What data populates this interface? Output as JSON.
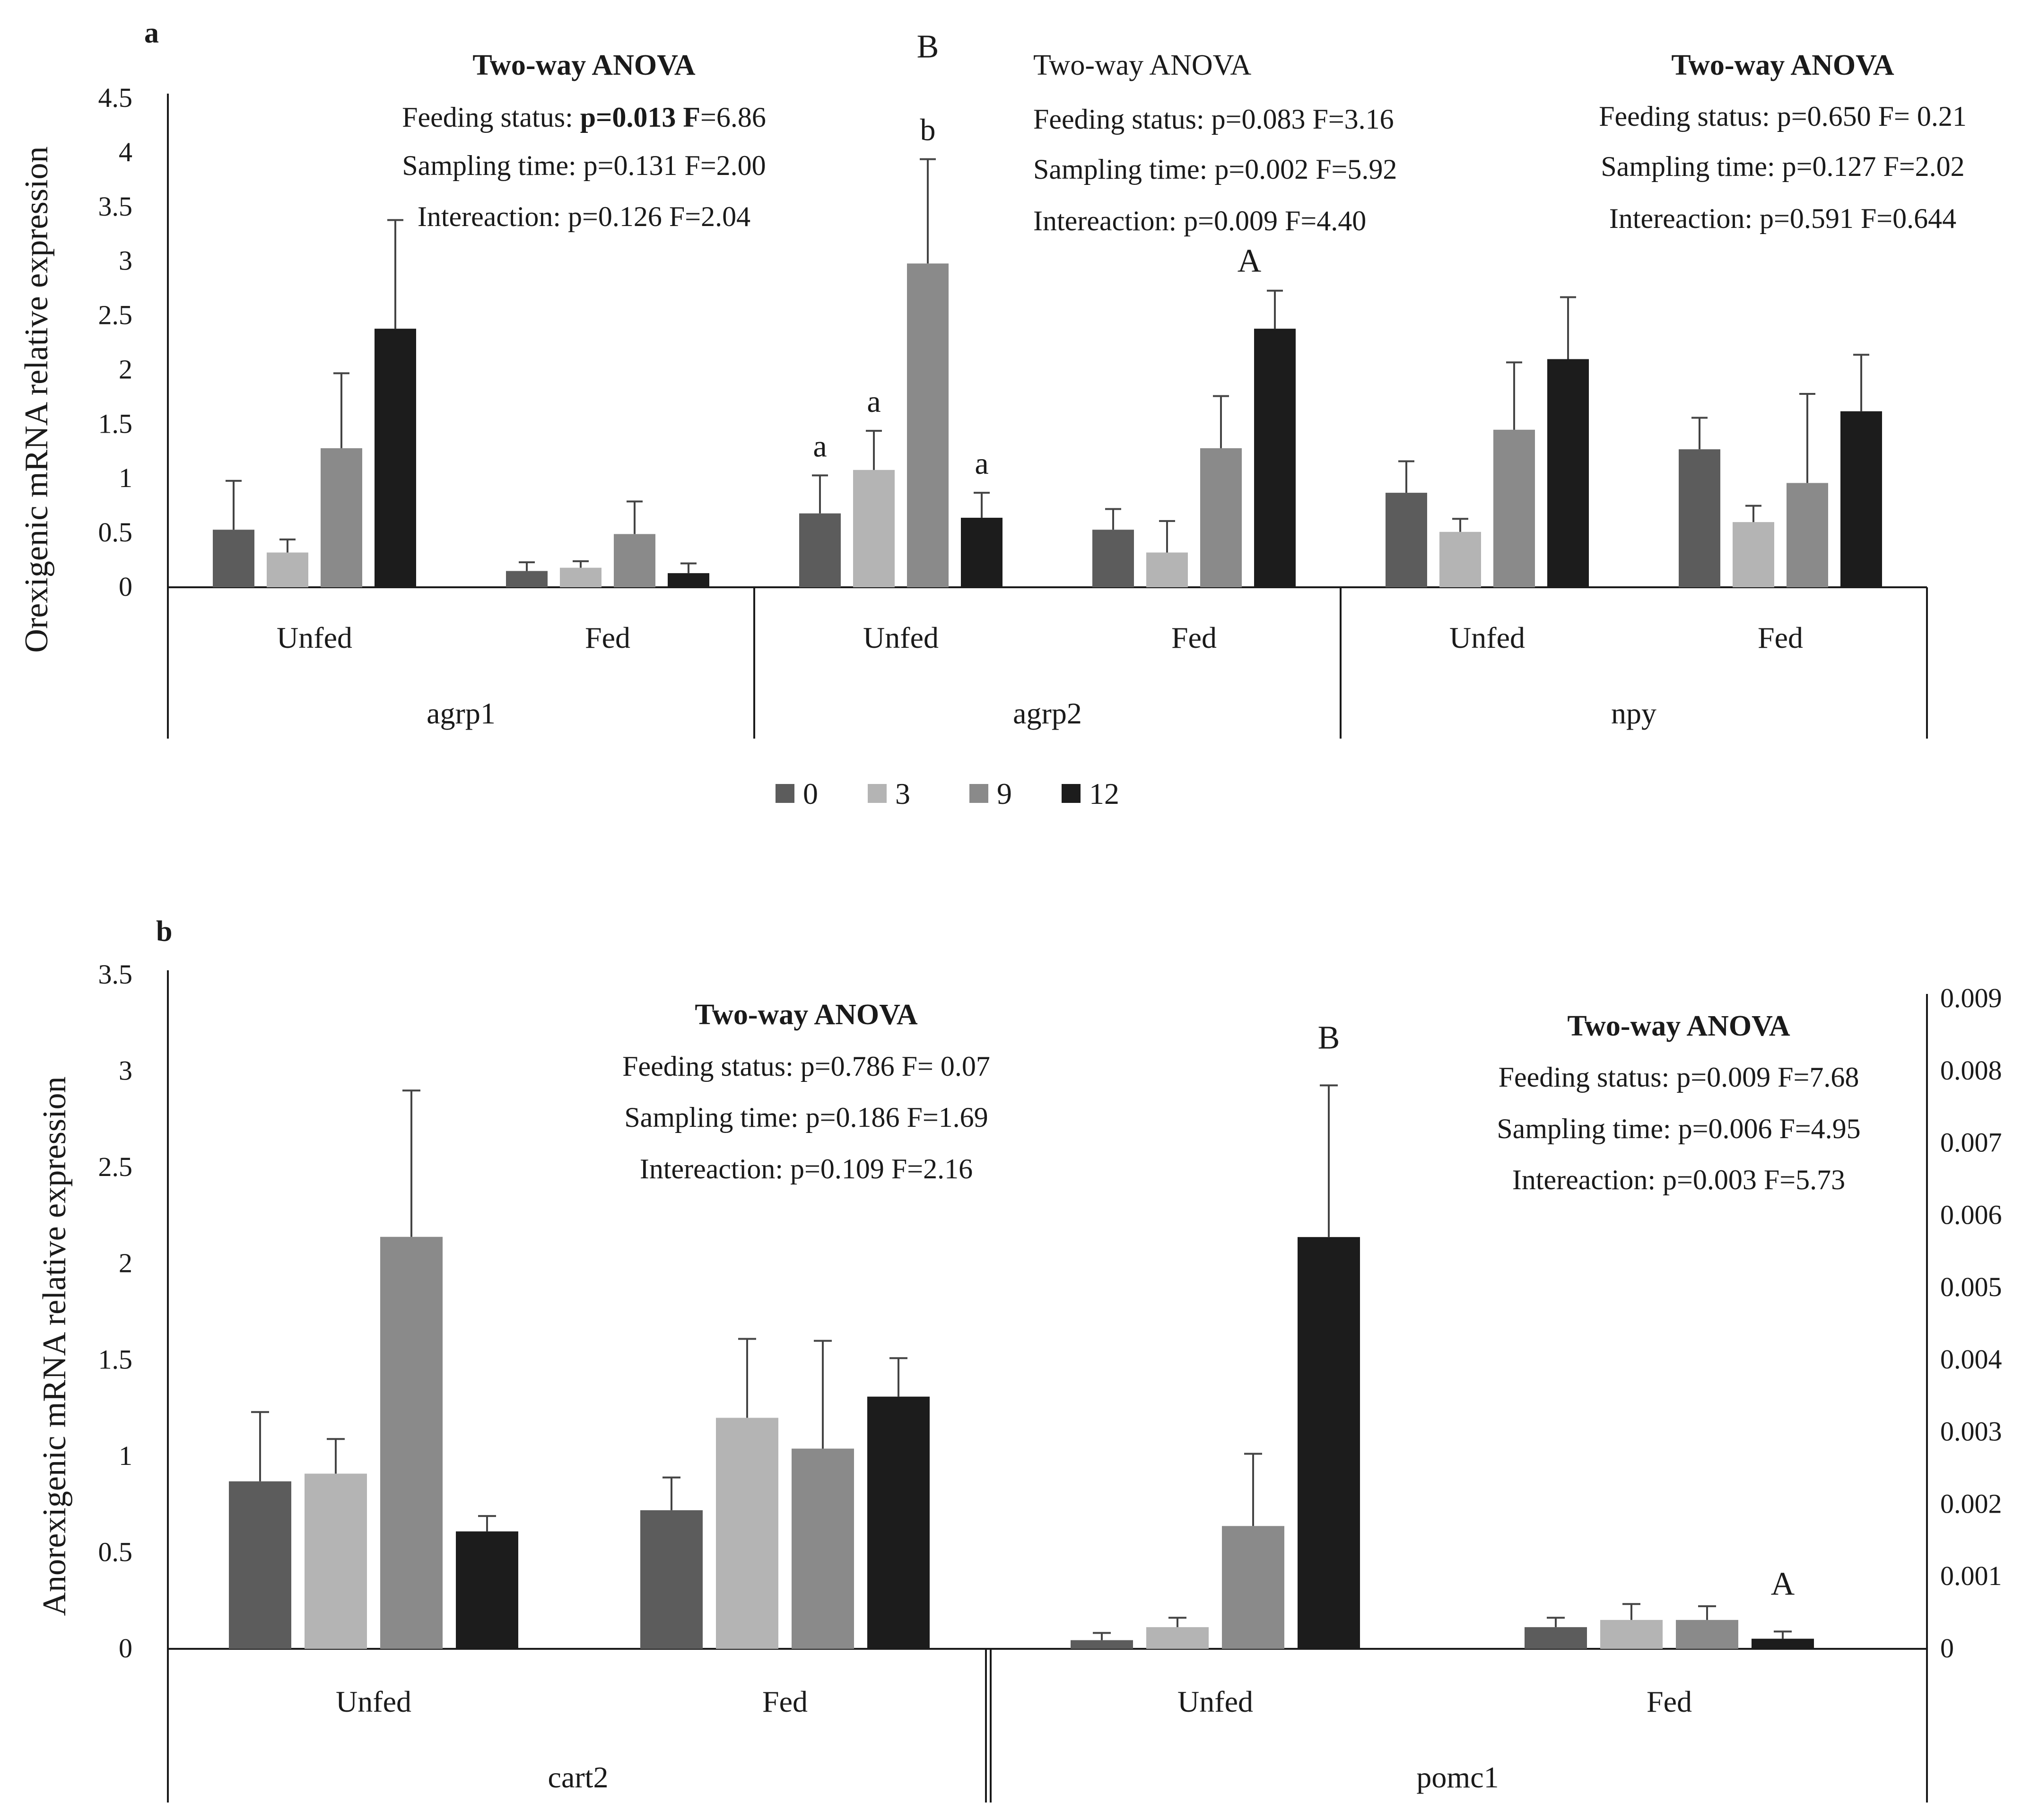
{
  "figure": {
    "panel_labels": [
      "a",
      "b"
    ],
    "legend": [
      {
        "label": "0",
        "color": "#5c5c5c"
      },
      {
        "label": "3",
        "color": "#b4b4b4"
      },
      {
        "label": "9",
        "color": "#8a8a8a"
      },
      {
        "label": "12",
        "color": "#1c1c1c"
      }
    ]
  },
  "chart_data": [
    {
      "type": "bar",
      "panel": "a",
      "ylabel": "Orexigenic mRNA relative expression",
      "ylim": [
        0,
        4.5
      ],
      "yticks": [
        "0",
        "0.5",
        "1",
        "1.5",
        "2",
        "2.5",
        "3",
        "3.5",
        "4",
        "4.5"
      ],
      "series_names": [
        "0",
        "3",
        "9",
        "12"
      ],
      "groups": [
        {
          "gene": "agrp1",
          "categories": [
            {
              "label": "Unfed",
              "values": [
                0.53,
                0.32,
                1.28,
                2.38
              ],
              "errors": [
                0.45,
                0.12,
                0.69,
                1.0
              ],
              "letters": [
                "",
                "",
                "",
                ""
              ]
            },
            {
              "label": "Fed",
              "values": [
                0.15,
                0.18,
                0.49,
                0.13
              ],
              "errors": [
                0.08,
                0.06,
                0.3,
                0.09
              ],
              "letters": [
                "",
                "",
                "",
                ""
              ]
            }
          ],
          "category_letters": {
            "Unfed": "",
            "Fed": ""
          },
          "anova": {
            "title": "Two-way ANOVA",
            "bold_title": true,
            "feeding": {
              "label": "Feeding status: ",
              "stats": "p=0.013 F",
              "tail": "=6.86",
              "bold_stats": true
            },
            "sampling": "Sampling time: p=0.131 F=2.00",
            "interaction": "Intereaction: p=0.126 F=2.04"
          }
        },
        {
          "gene": "agrp2",
          "categories": [
            {
              "label": "Unfed",
              "values": [
                0.68,
                1.08,
                2.98,
                0.64
              ],
              "errors": [
                0.35,
                0.36,
                0.96,
                0.23
              ],
              "letters": [
                "a",
                "a",
                "b",
                "a"
              ]
            },
            {
              "label": "Fed",
              "values": [
                0.53,
                0.32,
                1.28,
                2.38
              ],
              "errors": [
                0.19,
                0.29,
                0.48,
                0.35
              ],
              "letters": [
                "",
                "",
                "",
                ""
              ]
            }
          ],
          "category_letters": {
            "Unfed": "B",
            "Fed": "A"
          },
          "anova": {
            "title": "Two-way ANOVA",
            "bold_title": false,
            "feeding": {
              "label": "Feeding status: ",
              "stats": "p=0.083 F=3.16",
              "tail": "",
              "bold_stats": false
            },
            "sampling": "Sampling time: p=0.002 F=5.92",
            "interaction": "Intereaction: p=0.009 F=4.40"
          }
        },
        {
          "gene": "npy",
          "categories": [
            {
              "label": "Unfed",
              "values": [
                0.87,
                0.51,
                1.45,
                2.1
              ],
              "errors": [
                0.29,
                0.12,
                0.62,
                0.57
              ],
              "letters": [
                "",
                "",
                "",
                ""
              ]
            },
            {
              "label": "Fed",
              "values": [
                1.27,
                0.6,
                0.96,
                1.62
              ],
              "errors": [
                0.29,
                0.15,
                0.82,
                0.52
              ],
              "letters": [
                "",
                "",
                "",
                ""
              ]
            }
          ],
          "category_letters": {
            "Unfed": "",
            "Fed": ""
          },
          "anova": {
            "title": "Two-way ANOVA",
            "bold_title": true,
            "feeding": {
              "label": "Feeding status: ",
              "stats": "p=0.650 F= 0.21",
              "tail": "",
              "bold_stats": false
            },
            "sampling": "Sampling time: p=0.127 F=2.02",
            "interaction": "Intereaction: p=0.591 F=0.644"
          }
        }
      ]
    },
    {
      "type": "bar",
      "panel": "b",
      "ylabel": "Anorexigenic mRNA relative expression",
      "ylim": [
        0,
        3.5
      ],
      "yticks": [
        "0",
        "0.5",
        "1",
        "1.5",
        "2",
        "2.5",
        "3",
        "3.5"
      ],
      "y2lim": [
        0,
        0.009
      ],
      "y2ticks": [
        "0",
        "0.001",
        "0.002",
        "0.003",
        "0.004",
        "0.005",
        "0.006",
        "0.007",
        "0.008",
        "0.009"
      ],
      "series_names": [
        "0",
        "3",
        "9",
        "12"
      ],
      "groups": [
        {
          "gene": "cart2",
          "axis": "left",
          "categories": [
            {
              "label": "Unfed",
              "values": [
                0.87,
                0.91,
                2.14,
                0.61
              ],
              "errors": [
                0.36,
                0.18,
                0.76,
                0.08
              ],
              "letters": [
                "",
                "",
                "",
                ""
              ]
            },
            {
              "label": "Fed",
              "values": [
                0.72,
                1.2,
                1.04,
                1.31
              ],
              "errors": [
                0.17,
                0.41,
                0.56,
                0.2
              ],
              "letters": [
                "",
                "",
                "",
                ""
              ]
            }
          ],
          "category_letters": {
            "Unfed": "",
            "Fed": ""
          },
          "anova": {
            "title": "Two-way ANOVA",
            "bold_title": true,
            "feeding": {
              "label": "Feeding status: ",
              "stats": "p=0.786 F= 0.07",
              "tail": "",
              "bold_stats": false
            },
            "sampling": "Sampling time: p=0.186 F=1.69",
            "interaction": "Intereaction: p=0.109 F=2.16"
          }
        },
        {
          "gene": "pomc1",
          "axis": "right",
          "categories": [
            {
              "label": "Unfed",
              "values": [
                0.00012,
                0.0003,
                0.0017,
                0.0057
              ],
              "errors": [
                0.0001,
                0.00013,
                0.001,
                0.0021
              ],
              "letters": [
                "",
                "",
                "",
                ""
              ]
            },
            {
              "label": "Fed",
              "values": [
                0.0003,
                0.0004,
                0.0004,
                0.00014
              ],
              "errors": [
                0.00013,
                0.00022,
                0.00019,
                0.0001
              ],
              "letters": [
                "",
                "",
                "",
                ""
              ]
            }
          ],
          "category_letters": {
            "Unfed": "B",
            "Fed": "A"
          },
          "anova": {
            "title": "Two-way ANOVA",
            "bold_title": true,
            "feeding": {
              "label": "Feeding status: ",
              "stats": "p=0.009 F=7.68",
              "tail": "",
              "bold_stats": false
            },
            "sampling": "Sampling time: p=0.006 F=4.95",
            "interaction": "Intereaction: p=0.003 F=5.73"
          }
        }
      ]
    }
  ]
}
